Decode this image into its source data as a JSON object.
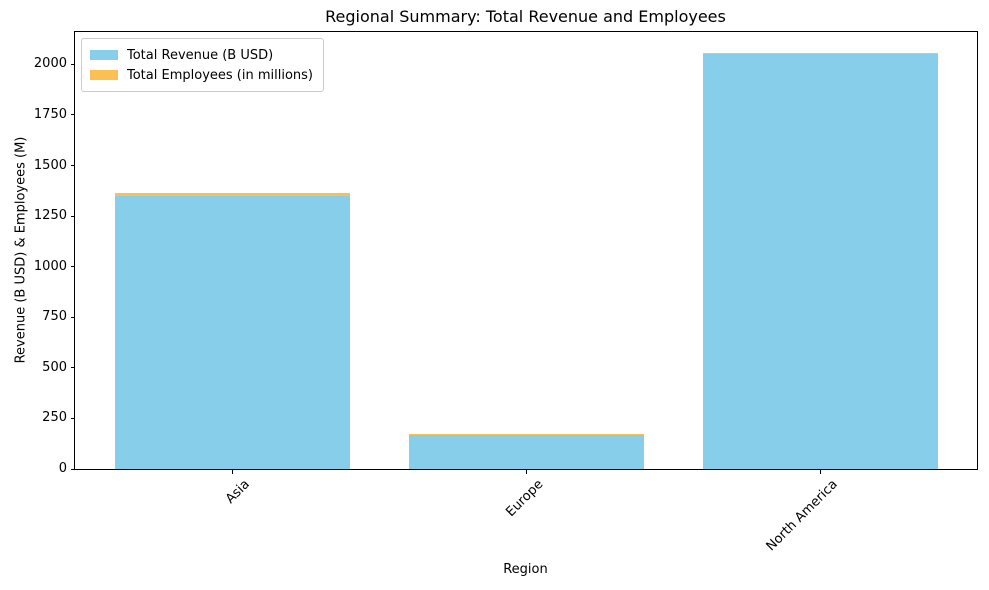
{
  "chart_data": {
    "type": "bar",
    "stacked": true,
    "title": "Regional Summary: Total Revenue and Employees",
    "xlabel": "Region",
    "ylabel": "Revenue (B USD) & Employees (M)",
    "categories": [
      "Asia",
      "Europe",
      "North America"
    ],
    "series": [
      {
        "name": "Total Revenue (B USD)",
        "color": "#87CEEB",
        "values": [
          1350,
          172,
          2050
        ]
      },
      {
        "name": "Total Employees (in millions)",
        "color": "#FCBF52",
        "values": [
          12,
          2,
          8
        ]
      }
    ],
    "ylim": [
      0,
      2160
    ],
    "yticks": [
      0,
      250,
      500,
      750,
      1000,
      1250,
      1500,
      1750,
      2000
    ],
    "xtick_rotation_deg": 45,
    "legend_position": "upper-left",
    "grid": false
  }
}
